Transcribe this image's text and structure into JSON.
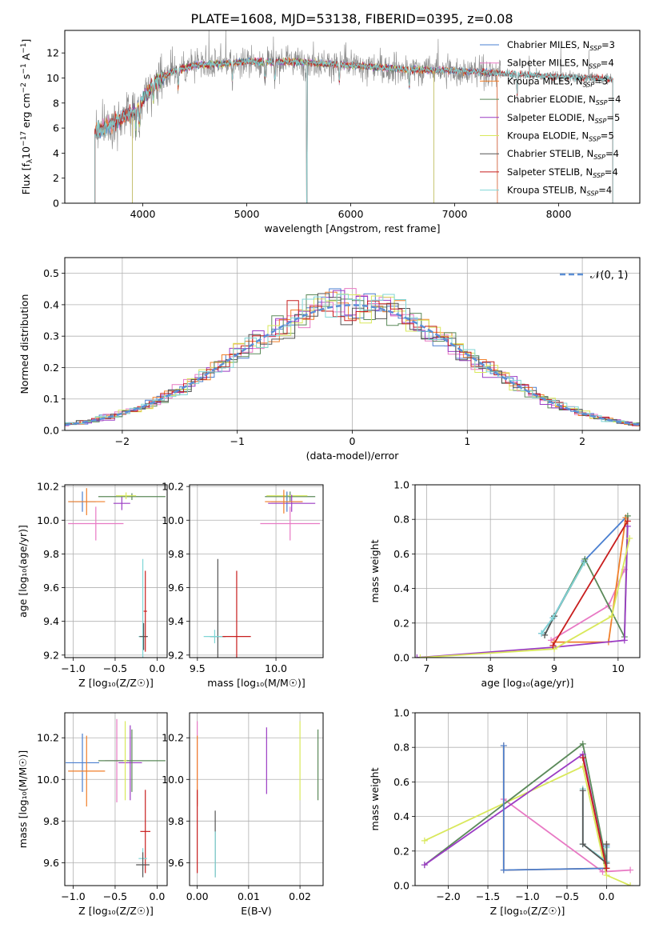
{
  "figure": {
    "title": "PLATE=1608, MJD=53138, FIBERID=0395, z=0.08"
  },
  "colors": {
    "Chabrier MILES": "#4a7fd0",
    "Salpeter MILES": "#e879c4",
    "Kroupa MILES": "#f07f2a",
    "Chabrier ELODIE": "#5b8a5a",
    "Salpeter ELODIE": "#9b3cc4",
    "Kroupa ELODIE": "#d9e85b",
    "Chabrier STELIB": "#555555",
    "Salpeter STELIB": "#c81e1e",
    "Kroupa STELIB": "#7fd6d6",
    "data": "#888888",
    "normal": "#5b8fd6"
  },
  "chart_data": [
    {
      "id": "spectrum",
      "type": "line",
      "xlabel": "wavelength [Angstrom, rest frame]",
      "ylabel": "Flux [f_λ10^-17 erg cm^-2 s^-1 A^-1]",
      "ylabel_parts": [
        "Flux [f",
        "λ",
        "10",
        "−17",
        " erg cm",
        "−2",
        " s",
        "−1",
        " A",
        "−1",
        "]"
      ],
      "xlim": [
        3250,
        8780
      ],
      "ylim": [
        0,
        13.8
      ],
      "xticks": [
        4000,
        5000,
        6000,
        7000,
        8000
      ],
      "yticks": [
        0,
        2,
        4,
        6,
        8,
        10,
        12
      ],
      "legend_position": "right",
      "legend": [
        {
          "name": "Chabrier MILES",
          "nssp": "3"
        },
        {
          "name": "Salpeter MILES",
          "nssp": "4"
        },
        {
          "name": "Kroupa MILES",
          "nssp": "3"
        },
        {
          "name": "Chabrier ELODIE",
          "nssp": "4"
        },
        {
          "name": "Salpeter ELODIE",
          "nssp": "5"
        },
        {
          "name": "Kroupa ELODIE",
          "nssp": "5"
        },
        {
          "name": "Chabrier STELIB",
          "nssp": "4"
        },
        {
          "name": "Salpeter STELIB",
          "nssp": "4"
        },
        {
          "name": "Kroupa STELIB",
          "nssp": "4"
        }
      ],
      "continuum_shape": {
        "x": [
          3500,
          3800,
          3950,
          4100,
          4300,
          4500,
          5000,
          5500,
          6000,
          6500,
          7000,
          7400,
          8000,
          8600
        ],
        "y": [
          5.5,
          6.8,
          7.5,
          9.6,
          10.6,
          11.0,
          11.3,
          11.3,
          11.0,
          10.7,
          10.6,
          10.4,
          10.1,
          9.9
        ]
      }
    },
    {
      "id": "residuals",
      "type": "histogram",
      "xlabel": "(data-model)/error",
      "ylabel": "Normed distribution",
      "xlim": [
        -2.5,
        2.5
      ],
      "ylim": [
        0,
        0.55
      ],
      "xticks": [
        -2,
        -1,
        0,
        1,
        2
      ],
      "xticklabels": [
        "−2",
        "−1",
        "0",
        "1",
        "2"
      ],
      "yticks": [
        0.0,
        0.1,
        0.2,
        0.3,
        0.4,
        0.5
      ],
      "yticklabels": [
        "0.0",
        "0.1",
        "0.2",
        "0.3",
        "0.4",
        "0.5"
      ],
      "grid": true,
      "legend_position": "top-right",
      "legend_label": "𝒩(0, 1)",
      "bin_width": 0.1
    },
    {
      "id": "age-vs-Z",
      "type": "scatter",
      "xlabel": "Z [log₁₀(Z/Z☉)]",
      "ylabel": "age  [log₁₀(age/yr)]",
      "xlim": [
        -1.1,
        0.12
      ],
      "ylim": [
        9.185,
        10.21
      ],
      "xticks": [
        -1.0,
        -0.5,
        0.0
      ],
      "xticklabels": [
        "−1.0",
        "−0.5",
        "0.0"
      ],
      "yticks": [
        9.2,
        9.4,
        9.6,
        9.8,
        10.0,
        10.2
      ],
      "yticklabels": [
        "9.2",
        "9.4",
        "9.6",
        "9.8",
        "10.0",
        "10.2"
      ],
      "grid": true,
      "points": [
        {
          "series": "Chabrier MILES",
          "x": -0.89,
          "y": 10.11,
          "xerr": 0.16,
          "yerr": 0.06
        },
        {
          "series": "Kroupa MILES",
          "x": -0.84,
          "y": 10.11,
          "xerr": 0.22,
          "yerr": 0.08
        },
        {
          "series": "Salpeter MILES",
          "x": -0.73,
          "y": 9.98,
          "xerr": 0.33,
          "yerr": 0.1
        },
        {
          "series": "Salpeter ELODIE",
          "x": -0.42,
          "y": 10.1,
          "xerr": 0.1,
          "yerr": 0.04
        },
        {
          "series": "Chabrier ELODIE",
          "x": -0.3,
          "y": 10.14,
          "xerr": 0.4,
          "yerr": 0.02
        },
        {
          "series": "Kroupa ELODIE",
          "x": -0.37,
          "y": 10.145,
          "xerr": 0.12,
          "yerr": 0.02
        },
        {
          "series": "Kroupa STELIB",
          "x": -0.17,
          "y": 9.31,
          "xerr": 0.05,
          "yerr": 0.46
        },
        {
          "series": "Chabrier STELIB",
          "x": -0.16,
          "y": 9.31,
          "xerr": 0.05,
          "yerr": 0.08
        },
        {
          "series": "Salpeter STELIB",
          "x": -0.14,
          "y": 9.46,
          "xerr": 0.02,
          "yerr": 0.24
        }
      ]
    },
    {
      "id": "age-vs-mass",
      "type": "scatter",
      "xlabel": "mass [log₁₀(M/M☉)]",
      "ylabel": "",
      "xlim": [
        9.45,
        10.3
      ],
      "ylim": [
        9.185,
        10.21
      ],
      "xticks": [
        9.5,
        10.0
      ],
      "xticklabels": [
        "9.5",
        "10.0"
      ],
      "yticks": [
        9.2,
        9.4,
        9.6,
        9.8,
        10.0,
        10.2
      ],
      "yticklabels": [
        "9.2",
        "9.4",
        "9.6",
        "9.8",
        "10.0",
        "10.2"
      ],
      "grid": true,
      "points": [
        {
          "series": "Chabrier ELODIE",
          "x": 10.09,
          "y": 10.14,
          "xerr": 0.16,
          "yerr": 0.03
        },
        {
          "series": "Kroupa ELODIE",
          "x": 10.07,
          "y": 10.145,
          "xerr": 0.13,
          "yerr": 0.02
        },
        {
          "series": "Salpeter ELODIE",
          "x": 10.1,
          "y": 10.1,
          "xerr": 0.15,
          "yerr": 0.05
        },
        {
          "series": "Chabrier MILES",
          "x": 10.07,
          "y": 10.11,
          "xerr": 0.1,
          "yerr": 0.06
        },
        {
          "series": "Kroupa MILES",
          "x": 10.05,
          "y": 10.11,
          "xerr": 0.12,
          "yerr": 0.07
        },
        {
          "series": "Salpeter MILES",
          "x": 10.09,
          "y": 9.98,
          "xerr": 0.19,
          "yerr": 0.1
        },
        {
          "series": "Chabrier STELIB",
          "x": 9.63,
          "y": 9.31,
          "xerr": 0.05,
          "yerr": 0.46
        },
        {
          "series": "Kroupa STELIB",
          "x": 9.61,
          "y": 9.31,
          "xerr": 0.07,
          "yerr": 0.04
        },
        {
          "series": "Salpeter STELIB",
          "x": 9.75,
          "y": 9.31,
          "xerr": 0.09,
          "yerr": 0.39
        }
      ]
    },
    {
      "id": "weight-vs-age",
      "type": "line",
      "xlabel": "age  [log₁₀(age/yr)]",
      "ylabel": "mass weight",
      "xlim": [
        6.82,
        10.34
      ],
      "ylim": [
        0,
        1.0
      ],
      "xticks": [
        7,
        8,
        9,
        10
      ],
      "xticklabels": [
        "7",
        "8",
        "9",
        "10"
      ],
      "yticks": [
        0.0,
        0.2,
        0.4,
        0.6,
        0.8,
        1.0
      ],
      "yticklabels": [
        "0.0",
        "0.2",
        "0.4",
        "0.6",
        "0.8",
        "1.0"
      ],
      "grid": true,
      "series": [
        {
          "name": "Chabrier MILES",
          "x": [
            8.8,
            8.98,
            9.47,
            10.12
          ],
          "y": [
            0.14,
            0.23,
            0.56,
            0.81
          ]
        },
        {
          "name": "Salpeter MILES",
          "x": [
            8.95,
            9.85,
            10.1
          ],
          "y": [
            0.1,
            0.3,
            0.51
          ]
        },
        {
          "name": "Kroupa MILES",
          "x": [
            9.0,
            9.85,
            10.12
          ],
          "y": [
            0.09,
            0.09,
            0.81
          ]
        },
        {
          "name": "Chabrier ELODIE",
          "x": [
            8.85,
            9.0,
            9.48,
            10.1,
            10.15
          ],
          "y": [
            0.13,
            0.24,
            0.57,
            0.12,
            0.82
          ]
        },
        {
          "name": "Salpeter ELODIE",
          "x": [
            6.85,
            9.0,
            10.1,
            10.15
          ],
          "y": [
            0.0,
            0.06,
            0.1,
            0.76
          ]
        },
        {
          "name": "Kroupa ELODIE",
          "x": [
            6.9,
            9.0,
            9.9,
            10.18
          ],
          "y": [
            0.0,
            0.05,
            0.24,
            0.69
          ]
        },
        {
          "name": "Chabrier STELIB",
          "x": [
            8.85,
            9.0,
            9.47
          ],
          "y": [
            0.13,
            0.24,
            0.55
          ]
        },
        {
          "name": "Salpeter STELIB",
          "x": [
            8.98,
            10.15
          ],
          "y": [
            0.07,
            0.79
          ]
        },
        {
          "name": "Kroupa STELIB",
          "x": [
            8.8,
            8.98,
            9.47
          ],
          "y": [
            0.14,
            0.23,
            0.55
          ]
        }
      ]
    },
    {
      "id": "mass-vs-Z",
      "type": "scatter",
      "xlabel": "Z [log₁₀(Z/Z☉)]",
      "ylabel": "mass [log₁₀(M/M☉)]",
      "xlim": [
        -1.1,
        0.12
      ],
      "ylim": [
        9.49,
        10.32
      ],
      "xticks": [
        -1.0,
        -0.5,
        0.0
      ],
      "xticklabels": [
        "−1.0",
        "−0.5",
        "0.0"
      ],
      "yticks": [
        9.6,
        9.8,
        10.0,
        10.2
      ],
      "yticklabels": [
        "9.6",
        "9.8",
        "10.0",
        "10.2"
      ],
      "grid": true,
      "points": [
        {
          "series": "Chabrier MILES",
          "x": -0.89,
          "y": 10.08,
          "xerr": 0.2,
          "yerr": 0.14
        },
        {
          "series": "Kroupa MILES",
          "x": -0.84,
          "y": 10.04,
          "xerr": 0.22,
          "yerr": 0.17
        },
        {
          "series": "Salpeter MILES",
          "x": -0.48,
          "y": 10.09,
          "xerr": 0.14,
          "yerr": 0.2
        },
        {
          "series": "Salpeter ELODIE",
          "x": -0.32,
          "y": 10.08,
          "xerr": 0.14,
          "yerr": 0.18
        },
        {
          "series": "Chabrier ELODIE",
          "x": -0.3,
          "y": 10.09,
          "xerr": 0.4,
          "yerr": 0.15
        },
        {
          "series": "Kroupa ELODIE",
          "x": -0.38,
          "y": 10.09,
          "xerr": 0.02,
          "yerr": 0.19
        },
        {
          "series": "Salpeter STELIB",
          "x": -0.14,
          "y": 9.75,
          "xerr": 0.06,
          "yerr": 0.2
        },
        {
          "series": "Kroupa STELIB",
          "x": -0.17,
          "y": 9.62,
          "xerr": 0.05,
          "yerr": 0.05
        },
        {
          "series": "Chabrier STELIB",
          "x": -0.17,
          "y": 9.59,
          "xerr": 0.08,
          "yerr": 0.06
        }
      ]
    },
    {
      "id": "mass-vs-EBV",
      "type": "scatter",
      "xlabel": "E(B-V)",
      "ylabel": "",
      "xlim": [
        -0.0015,
        0.0245
      ],
      "ylim": [
        9.49,
        10.32
      ],
      "xticks": [
        0.0,
        0.01,
        0.02
      ],
      "xticklabels": [
        "0.00",
        "0.01",
        "0.02"
      ],
      "yticks": [
        9.6,
        9.8,
        10.0,
        10.2
      ],
      "yticklabels": [
        "9.6",
        "9.8",
        "10.0",
        "10.2"
      ],
      "grid": true,
      "points": [
        {
          "series": "Salpeter MILES",
          "x": 0.0,
          "y": 10.08,
          "yerr": 0.2
        },
        {
          "series": "Kroupa MILES",
          "x": 0.0,
          "y": 10.04,
          "yerr": 0.17
        },
        {
          "series": "Salpeter STELIB",
          "x": 0.0,
          "y": 9.75,
          "yerr": 0.2
        },
        {
          "series": "Chabrier STELIB",
          "x": 0.0035,
          "y": 9.69,
          "yerr": 0.16
        },
        {
          "series": "Kroupa STELIB",
          "x": 0.0035,
          "y": 9.64,
          "yerr": 0.11
        },
        {
          "series": "Salpeter ELODIE",
          "x": 0.0135,
          "y": 10.09,
          "yerr": 0.16
        },
        {
          "series": "Kroupa ELODIE",
          "x": 0.02,
          "y": 10.09,
          "yerr": 0.19
        },
        {
          "series": "Chabrier ELODIE",
          "x": 0.0235,
          "y": 10.07,
          "yerr": 0.17
        }
      ]
    },
    {
      "id": "weight-vs-Z",
      "type": "line",
      "xlabel": "Z [log₁₀(Z/Z☉)]",
      "ylabel": "mass weight",
      "xlim": [
        -2.42,
        0.42
      ],
      "ylim": [
        0,
        1.0
      ],
      "xticks": [
        -2.0,
        -1.5,
        -1.0,
        -0.5,
        0.0
      ],
      "xticklabels": [
        "−2.0",
        "−1.5",
        "−1.0",
        "−0.5",
        "0.0"
      ],
      "yticks": [
        0.0,
        0.2,
        0.4,
        0.6,
        0.8,
        1.0
      ],
      "yticklabels": [
        "0.0",
        "0.2",
        "0.4",
        "0.6",
        "0.8",
        "1.0"
      ],
      "grid": true,
      "series": [
        {
          "name": "Salpeter MILES",
          "x": [
            -1.3,
            -0.05,
            0.3
          ],
          "y": [
            0.5,
            0.08,
            0.09
          ]
        },
        {
          "name": "Kroupa ELODIE",
          "x": [
            -2.3,
            -0.3,
            0.0,
            0.3
          ],
          "y": [
            0.26,
            0.69,
            0.06,
            0.0
          ]
        },
        {
          "name": "Chabrier ELODIE",
          "x": [
            -2.3,
            -0.3,
            0.0
          ],
          "y": [
            0.12,
            0.82,
            0.13
          ]
        },
        {
          "name": "Salpeter ELODIE",
          "x": [
            -2.3,
            -0.3,
            0.0
          ],
          "y": [
            0.12,
            0.76,
            0.1
          ]
        },
        {
          "name": "Kroupa MILES",
          "x": [
            -1.3,
            -1.3,
            0.0,
            0.0
          ],
          "y": [
            0.81,
            0.09,
            0.1,
            0.24
          ]
        },
        {
          "name": "Chabrier MILES",
          "x": [
            -1.3,
            -1.3,
            0.0,
            0.0
          ],
          "y": [
            0.81,
            0.09,
            0.1,
            0.23
          ]
        },
        {
          "name": "Kroupa STELIB",
          "x": [
            -0.3,
            -0.3,
            0.0,
            0.0
          ],
          "y": [
            0.56,
            0.24,
            0.14,
            0.22
          ]
        },
        {
          "name": "Chabrier STELIB",
          "x": [
            -0.3,
            -0.3,
            0.0,
            0.0
          ],
          "y": [
            0.55,
            0.24,
            0.13,
            0.24
          ]
        },
        {
          "name": "Salpeter STELIB",
          "x": [
            -0.3,
            0.0
          ],
          "y": [
            0.74,
            0.1
          ]
        }
      ]
    }
  ]
}
